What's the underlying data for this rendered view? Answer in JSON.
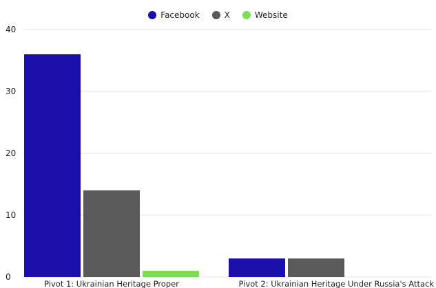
{
  "chart_data": {
    "type": "bar",
    "title": "",
    "xlabel": "",
    "ylabel": "",
    "categories": [
      "Pivot 1: Ukrainian Heritage Proper",
      "Pivot 2: Ukrainian Heritage Under Russia's Attack"
    ],
    "series": [
      {
        "name": "Facebook",
        "values": [
          36,
          3
        ],
        "color": "#1a0fa8"
      },
      {
        "name": "X",
        "values": [
          14,
          3
        ],
        "color": "#5a5a5a"
      },
      {
        "name": "Website",
        "values": [
          1,
          0
        ],
        "color": "#7ddc5a"
      }
    ],
    "ylim": [
      0,
      40
    ],
    "yticks": [
      0,
      10,
      20,
      30,
      40
    ],
    "grid": true,
    "legend_position": "top-center"
  }
}
